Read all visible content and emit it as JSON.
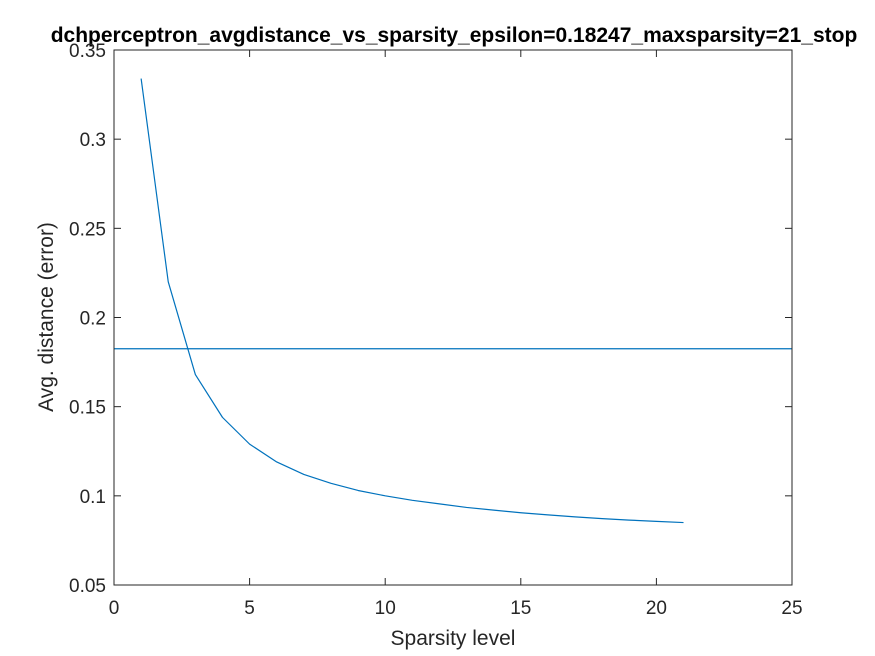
{
  "chart_data": {
    "type": "line",
    "title": "dchperceptron_avgdistance_vs_sparsity_epsilon=0.18247_maxsparsity=21_stop",
    "xlabel": "Sparsity level",
    "ylabel": "Avg. distance (error)",
    "xlim": [
      0,
      25
    ],
    "ylim": [
      0.05,
      0.35
    ],
    "xticks": [
      0,
      5,
      10,
      15,
      20,
      25
    ],
    "yticks": [
      0.05,
      0.1,
      0.15,
      0.2,
      0.25,
      0.3,
      0.35
    ],
    "xtick_labels": [
      "0",
      "5",
      "10",
      "15",
      "20",
      "25"
    ],
    "ytick_labels": [
      "0.05",
      "0.1",
      "0.15",
      "0.2",
      "0.25",
      "0.3",
      "0.35"
    ],
    "grid": false,
    "line_color": "#0072BD",
    "series": [
      {
        "x": [
          1,
          2,
          3,
          4,
          5,
          6,
          7,
          8,
          9,
          10,
          11,
          12,
          13,
          14,
          15,
          16,
          17,
          18,
          19,
          20,
          21
        ],
        "values": [
          0.334,
          0.22,
          0.168,
          0.144,
          0.129,
          0.119,
          0.112,
          0.107,
          0.103,
          0.1,
          0.0975,
          0.0955,
          0.0935,
          0.092,
          0.0905,
          0.0893,
          0.0882,
          0.0872,
          0.0864,
          0.0857,
          0.085
        ]
      }
    ],
    "hlines": [
      {
        "y": 0.18247,
        "color": "#0072BD"
      }
    ]
  }
}
